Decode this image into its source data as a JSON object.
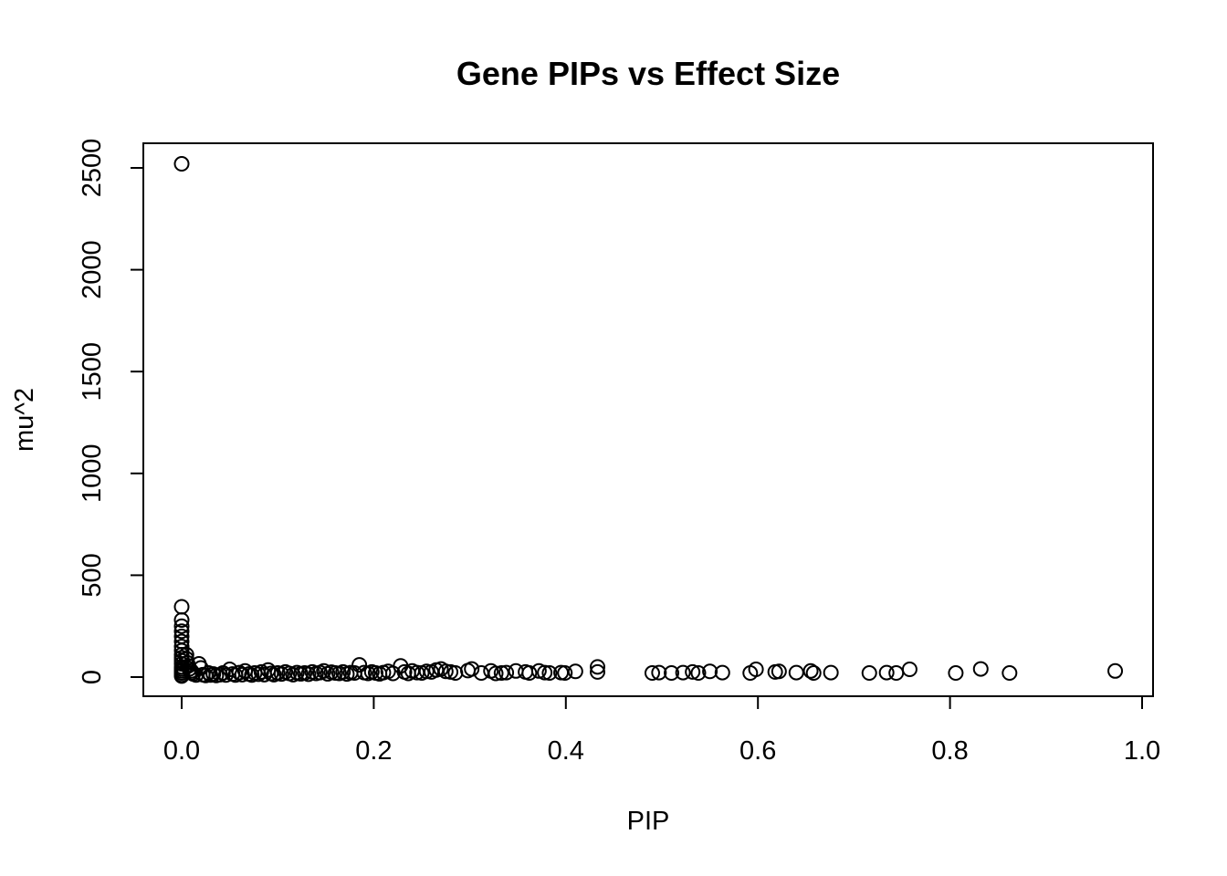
{
  "chart_data": {
    "type": "scatter",
    "title": "Gene PIPs vs Effect Size",
    "xlabel": "PIP",
    "ylabel": "mu^2",
    "xlim": [
      0,
      1
    ],
    "ylim": [
      0,
      2500
    ],
    "xticks": [
      0,
      0.2,
      0.4,
      0.6,
      0.8,
      1
    ],
    "xtick_labels": [
      "0.0",
      "0.2",
      "0.4",
      "0.6",
      "0.8",
      "1.0"
    ],
    "yticks": [
      0,
      500,
      1000,
      1500,
      2000,
      2500
    ],
    "ytick_labels": [
      "0",
      "500",
      "1000",
      "1500",
      "2000",
      "2500"
    ],
    "grid": false,
    "legend": "none",
    "points": [
      [
        0.0,
        2520
      ],
      [
        0.0,
        345
      ],
      [
        0.0,
        280
      ],
      [
        0.0,
        250
      ],
      [
        0.0,
        225
      ],
      [
        0.0,
        200
      ],
      [
        0.0,
        175
      ],
      [
        0.0,
        150
      ],
      [
        0.0,
        130
      ],
      [
        0.0,
        110
      ],
      [
        0.0,
        95
      ],
      [
        0.0,
        80
      ],
      [
        0.0,
        65
      ],
      [
        0.0,
        50
      ],
      [
        0.0,
        40
      ],
      [
        0.0,
        30
      ],
      [
        0.0,
        20
      ],
      [
        0.0,
        10
      ],
      [
        0.0,
        5
      ],
      [
        0.005,
        110
      ],
      [
        0.005,
        90
      ],
      [
        0.006,
        70
      ],
      [
        0.007,
        55
      ],
      [
        0.008,
        40
      ],
      [
        0.01,
        30
      ],
      [
        0.01,
        20
      ],
      [
        0.012,
        15
      ],
      [
        0.015,
        10
      ],
      [
        0.018,
        65
      ],
      [
        0.02,
        45
      ],
      [
        0.022,
        12
      ],
      [
        0.025,
        8
      ],
      [
        0.028,
        20
      ],
      [
        0.03,
        10
      ],
      [
        0.033,
        15
      ],
      [
        0.036,
        8
      ],
      [
        0.04,
        12
      ],
      [
        0.043,
        20
      ],
      [
        0.046,
        10
      ],
      [
        0.05,
        38
      ],
      [
        0.053,
        15
      ],
      [
        0.056,
        10
      ],
      [
        0.06,
        22
      ],
      [
        0.063,
        12
      ],
      [
        0.066,
        30
      ],
      [
        0.07,
        15
      ],
      [
        0.073,
        10
      ],
      [
        0.076,
        20
      ],
      [
        0.08,
        14
      ],
      [
        0.083,
        25
      ],
      [
        0.086,
        12
      ],
      [
        0.09,
        35
      ],
      [
        0.093,
        18
      ],
      [
        0.096,
        12
      ],
      [
        0.1,
        20
      ],
      [
        0.104,
        15
      ],
      [
        0.108,
        25
      ],
      [
        0.112,
        18
      ],
      [
        0.116,
        12
      ],
      [
        0.12,
        22
      ],
      [
        0.124,
        16
      ],
      [
        0.128,
        20
      ],
      [
        0.132,
        14
      ],
      [
        0.136,
        25
      ],
      [
        0.14,
        18
      ],
      [
        0.144,
        22
      ],
      [
        0.148,
        30
      ],
      [
        0.152,
        16
      ],
      [
        0.156,
        24
      ],
      [
        0.16,
        20
      ],
      [
        0.164,
        18
      ],
      [
        0.168,
        25
      ],
      [
        0.172,
        15
      ],
      [
        0.176,
        22
      ],
      [
        0.18,
        20
      ],
      [
        0.185,
        60
      ],
      [
        0.19,
        22
      ],
      [
        0.194,
        18
      ],
      [
        0.198,
        25
      ],
      [
        0.202,
        20
      ],
      [
        0.206,
        16
      ],
      [
        0.21,
        22
      ],
      [
        0.215,
        28
      ],
      [
        0.22,
        18
      ],
      [
        0.228,
        55
      ],
      [
        0.232,
        25
      ],
      [
        0.236,
        18
      ],
      [
        0.24,
        30
      ],
      [
        0.245,
        22
      ],
      [
        0.25,
        20
      ],
      [
        0.255,
        28
      ],
      [
        0.26,
        25
      ],
      [
        0.265,
        35
      ],
      [
        0.27,
        40
      ],
      [
        0.275,
        28
      ],
      [
        0.28,
        25
      ],
      [
        0.285,
        20
      ],
      [
        0.298,
        32
      ],
      [
        0.302,
        40
      ],
      [
        0.312,
        20
      ],
      [
        0.322,
        30
      ],
      [
        0.327,
        18
      ],
      [
        0.333,
        20
      ],
      [
        0.338,
        22
      ],
      [
        0.348,
        30
      ],
      [
        0.358,
        25
      ],
      [
        0.362,
        20
      ],
      [
        0.372,
        30
      ],
      [
        0.378,
        22
      ],
      [
        0.383,
        20
      ],
      [
        0.395,
        22
      ],
      [
        0.399,
        20
      ],
      [
        0.41,
        28
      ],
      [
        0.433,
        50
      ],
      [
        0.433,
        25
      ],
      [
        0.49,
        20
      ],
      [
        0.497,
        22
      ],
      [
        0.51,
        20
      ],
      [
        0.522,
        22
      ],
      [
        0.532,
        25
      ],
      [
        0.538,
        20
      ],
      [
        0.55,
        28
      ],
      [
        0.563,
        22
      ],
      [
        0.592,
        20
      ],
      [
        0.598,
        38
      ],
      [
        0.618,
        25
      ],
      [
        0.622,
        28
      ],
      [
        0.64,
        22
      ],
      [
        0.655,
        30
      ],
      [
        0.658,
        20
      ],
      [
        0.676,
        22
      ],
      [
        0.716,
        20
      ],
      [
        0.734,
        22
      ],
      [
        0.744,
        20
      ],
      [
        0.758,
        38
      ],
      [
        0.806,
        20
      ],
      [
        0.832,
        40
      ],
      [
        0.862,
        20
      ],
      [
        0.972,
        30
      ]
    ]
  }
}
